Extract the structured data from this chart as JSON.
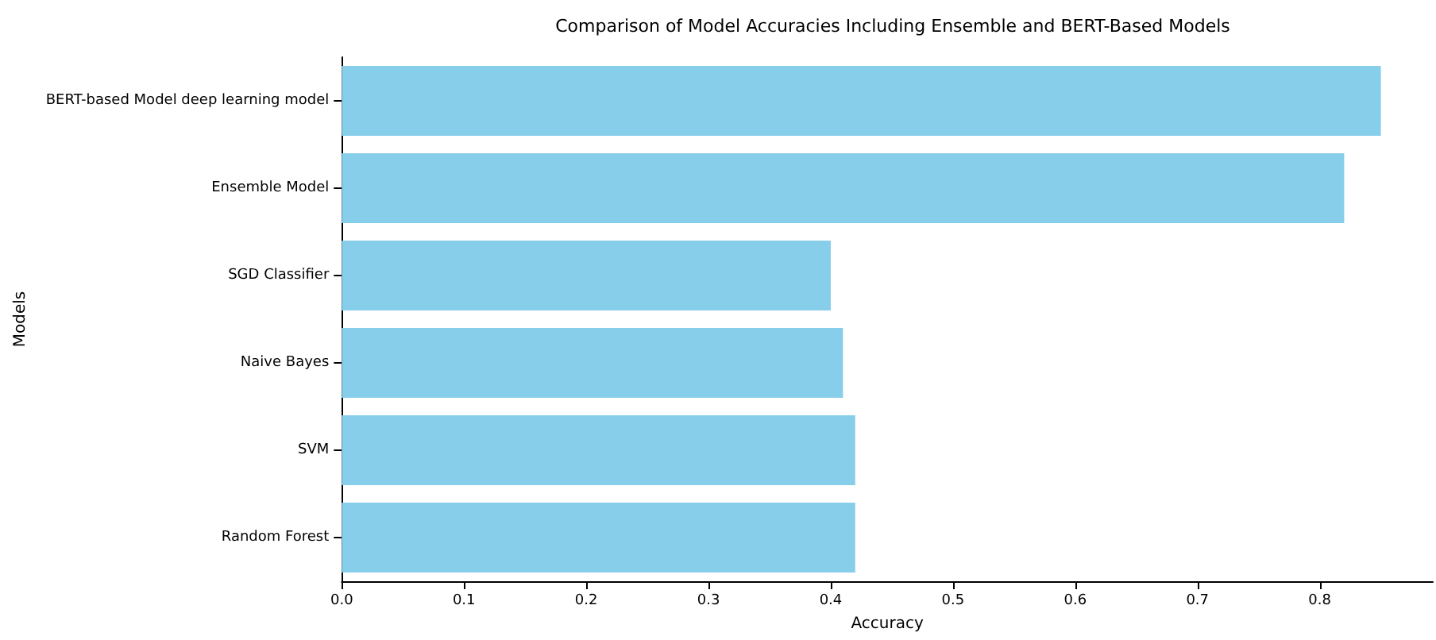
{
  "chart_data": {
    "type": "bar",
    "orientation": "horizontal",
    "title": "Comparison of Model Accuracies Including Ensemble and BERT-Based Models",
    "xlabel": "Accuracy",
    "ylabel": "Models",
    "categories": [
      "BERT-based Model deep learning model",
      "Ensemble Model",
      "SGD Classifier",
      "Naive Bayes",
      "SVM",
      "Random Forest"
    ],
    "values": [
      0.85,
      0.82,
      0.4,
      0.41,
      0.42,
      0.42
    ],
    "color": "#87ceeb",
    "xlim": [
      0,
      0.8925
    ],
    "xticks": [
      {
        "value": 0,
        "label": "0.0"
      },
      0.1,
      0.2,
      0.3,
      0.4,
      0.5,
      0.6,
      0.7,
      0.8
    ],
    "grid": false
  }
}
